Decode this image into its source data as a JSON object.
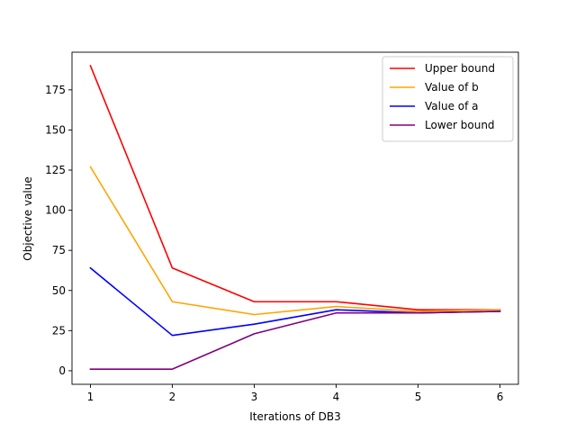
{
  "chart_data": {
    "type": "line",
    "title": "",
    "xlabel": "Iterations of DB3",
    "ylabel": "Objective value",
    "x": [
      1,
      2,
      3,
      4,
      5,
      6
    ],
    "xticks": [
      "1",
      "2",
      "3",
      "4",
      "5",
      "6"
    ],
    "yticks": [
      "0",
      "25",
      "50",
      "75",
      "100",
      "125",
      "150",
      "175"
    ],
    "xlim": [
      0.775,
      6.225
    ],
    "ylim": [
      -8.45,
      198.45
    ],
    "grid": false,
    "legend_position": "top-right",
    "series": [
      {
        "name": "Upper bound",
        "color": "#ff0000",
        "values": [
          190,
          64,
          43,
          43,
          38,
          38
        ]
      },
      {
        "name": "Value of b",
        "color": "#ffa500",
        "values": [
          127,
          43,
          35,
          40,
          37,
          38
        ]
      },
      {
        "name": "Value of a",
        "color": "#0000ff",
        "values": [
          64,
          22,
          29,
          38,
          36,
          37
        ]
      },
      {
        "name": "Lower bound",
        "color": "#800080",
        "values": [
          1,
          1,
          23,
          36,
          36,
          37
        ]
      }
    ]
  }
}
